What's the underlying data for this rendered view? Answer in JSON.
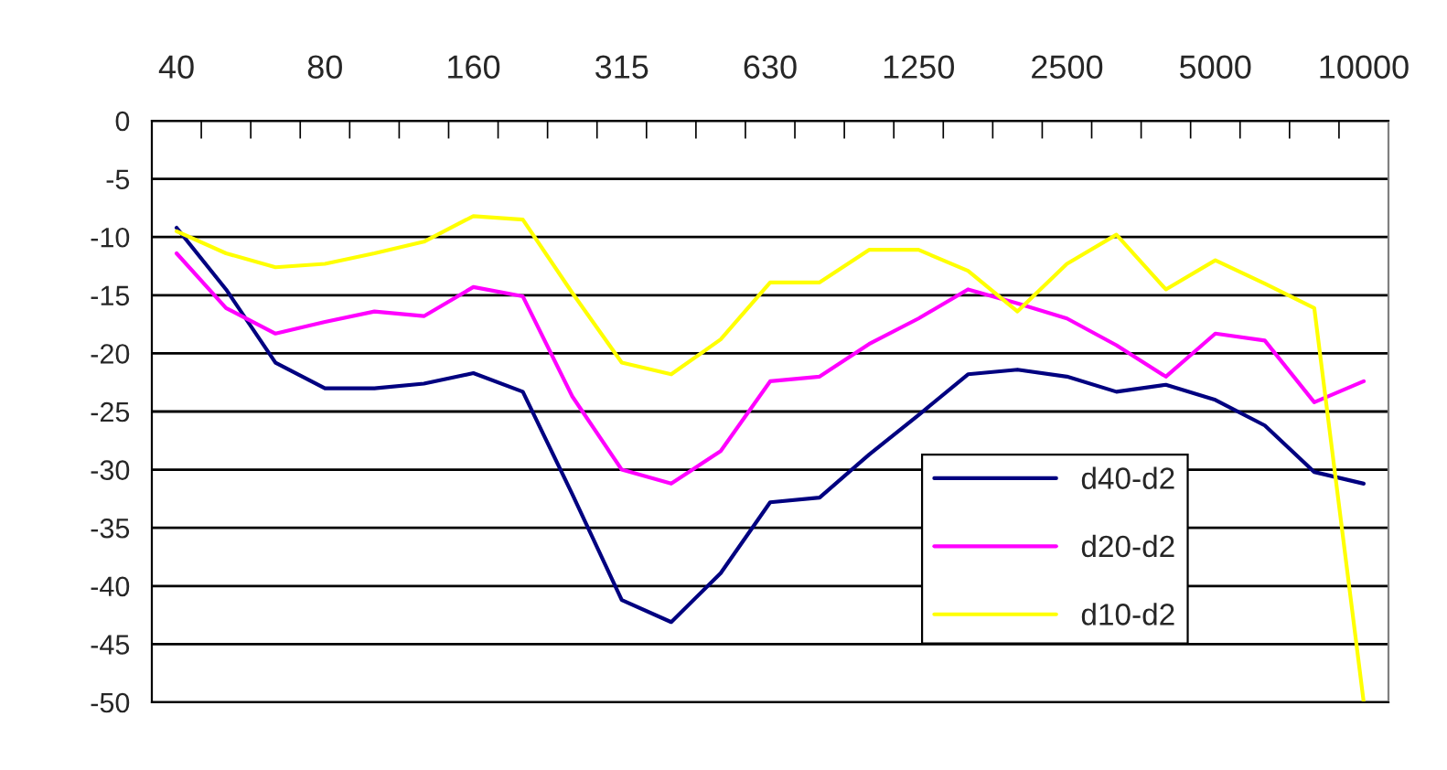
{
  "chart_data": {
    "type": "line",
    "categories": [
      "40",
      null,
      null,
      "80",
      null,
      null,
      "160",
      null,
      null,
      "315",
      null,
      null,
      "630",
      null,
      null,
      "1250",
      null,
      null,
      "2500",
      null,
      null,
      "5000",
      null,
      null,
      "10000"
    ],
    "series": [
      {
        "name": "d40-d2",
        "color": "#000080",
        "values": [
          -9.2,
          -14.5,
          -20.8,
          -23.0,
          -23.0,
          -22.6,
          -21.7,
          -23.3,
          -32.1,
          -41.2,
          -43.1,
          -38.9,
          -32.8,
          -32.4,
          -28.7,
          -25.3,
          -21.8,
          -21.4,
          -22.0,
          -23.3,
          -22.7,
          -24.0,
          -26.2,
          -30.2,
          -31.2
        ]
      },
      {
        "name": "d20-d2",
        "color": "#ff00ff",
        "values": [
          -11.4,
          -16.1,
          -18.3,
          -17.3,
          -16.4,
          -16.8,
          -14.3,
          -15.1,
          -23.7,
          -30.0,
          -31.2,
          -28.4,
          -22.4,
          -22.0,
          -19.2,
          -17.0,
          -14.5,
          -15.7,
          -17.0,
          -19.3,
          -22.0,
          -18.3,
          -18.9,
          -24.2,
          -22.4
        ]
      },
      {
        "name": "d10-d2",
        "color": "#ffff00",
        "values": [
          -9.5,
          -11.4,
          -12.6,
          -12.3,
          -11.4,
          -10.4,
          -8.2,
          -8.5,
          -14.8,
          -20.8,
          -21.8,
          -18.8,
          -13.9,
          -13.9,
          -11.1,
          -11.1,
          -12.9,
          -16.4,
          -12.3,
          -9.8,
          -14.5,
          -12.0,
          -14.0,
          -16.1,
          -50
        ]
      }
    ],
    "ylim": [
      -50,
      0
    ],
    "yticks": [
      0,
      -5,
      -10,
      -15,
      -20,
      -25,
      -30,
      -35,
      -40,
      -45,
      -50
    ],
    "grid": "y",
    "legend": "right",
    "marker": "none",
    "line_style": "solid"
  }
}
